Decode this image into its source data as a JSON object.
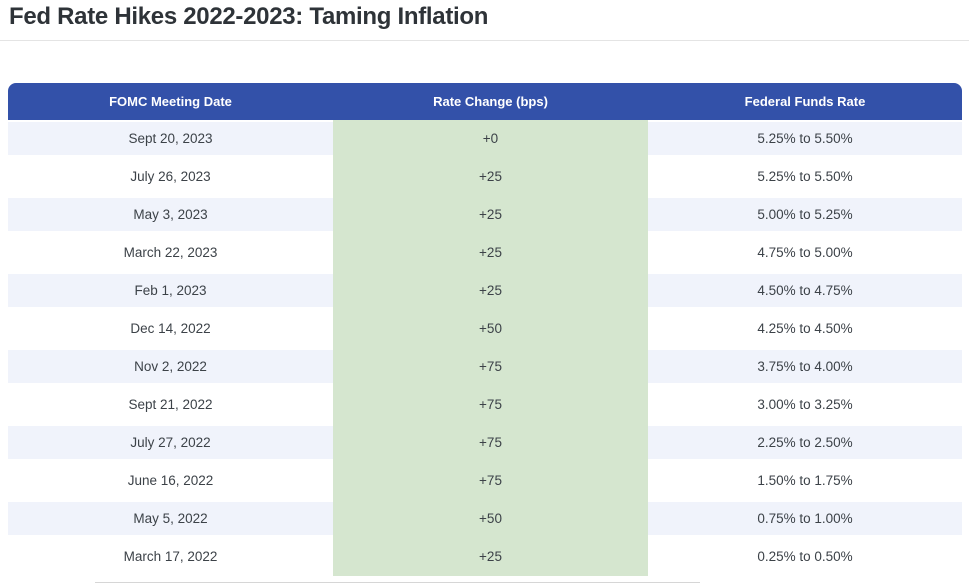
{
  "title": "Fed Rate Hikes 2022-2023: Taming Inflation",
  "colors": {
    "header_bg": "#3351A9",
    "header_text": "#FFFFFF",
    "stripe_bg": "#F0F3FB",
    "highlight_column_bg": "#D5E6CF",
    "title_text": "#2E3338",
    "cell_text": "#3C4248",
    "divider": "#E4E4E4"
  },
  "chart_data": {
    "type": "table",
    "title": "Fed Rate Hikes 2022-2023: Taming Inflation",
    "columns": [
      "FOMC Meeting Date",
      "Rate Change (bps)",
      "Federal Funds Rate"
    ],
    "highlighted_column": "Rate Change (bps)",
    "layout_hints": {
      "striped_rows": true,
      "header_style": "solid blue with white bold text, rounded top corners",
      "highlight_style": "middle column shaded light green for all rows"
    },
    "rows": [
      [
        "Sept 20, 2023",
        "+0",
        "5.25% to 5.50%"
      ],
      [
        "July 26, 2023",
        "+25",
        "5.25% to 5.50%"
      ],
      [
        "May 3, 2023",
        "+25",
        "5.00% to 5.25%"
      ],
      [
        "March 22, 2023",
        "+25",
        "4.75% to 5.00%"
      ],
      [
        "Feb 1, 2023",
        "+25",
        "4.50% to 4.75%"
      ],
      [
        "Dec 14, 2022",
        "+50",
        "4.25% to 4.50%"
      ],
      [
        "Nov 2, 2022",
        "+75",
        "3.75% to 4.00%"
      ],
      [
        "Sept 21, 2022",
        "+75",
        "3.00% to 3.25%"
      ],
      [
        "July 27, 2022",
        "+75",
        "2.25% to 2.50%"
      ],
      [
        "June 16, 2022",
        "+75",
        "1.50% to 1.75%"
      ],
      [
        "May 5, 2022",
        "+50",
        "0.75% to 1.00%"
      ],
      [
        "March 17, 2022",
        "+25",
        "0.25% to 0.50%"
      ]
    ]
  }
}
